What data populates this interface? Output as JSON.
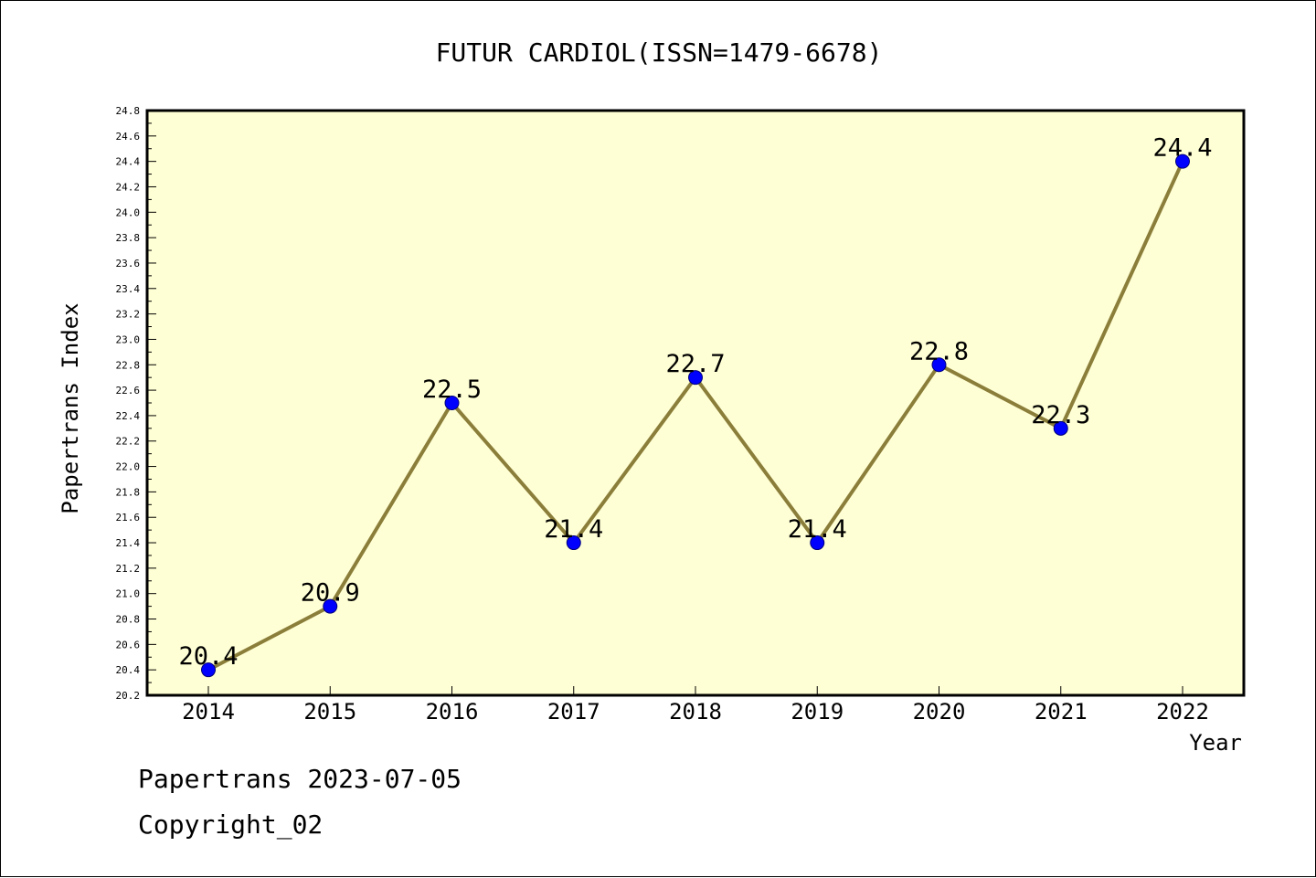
{
  "chart_data": {
    "type": "line",
    "title": "FUTUR CARDIOL(ISSN=1479-6678)",
    "xlabel": "Year",
    "ylabel": "Papertrans Index",
    "categories": [
      "2014",
      "2015",
      "2016",
      "2017",
      "2018",
      "2019",
      "2020",
      "2021",
      "2022"
    ],
    "series": [
      {
        "values": [
          20.4,
          20.9,
          22.5,
          21.4,
          22.7,
          21.4,
          22.8,
          22.3,
          24.4
        ]
      }
    ],
    "data_labels": [
      "20.4",
      "20.9",
      "22.5",
      "21.4",
      "22.7",
      "21.4",
      "22.8",
      "22.3",
      "24.4"
    ],
    "ylim": [
      20.2,
      24.8
    ],
    "yticks": [
      "20.2",
      "20.4",
      "20.6",
      "20.8",
      "21.0",
      "21.2",
      "21.4",
      "21.6",
      "21.8",
      "22.0",
      "22.2",
      "22.4",
      "22.6",
      "22.8",
      "23.0",
      "23.2",
      "23.4",
      "23.6",
      "23.8",
      "24.0",
      "24.2",
      "24.4",
      "24.6",
      "24.8"
    ],
    "grid": false,
    "colors": {
      "plot_background": "#ffffd5",
      "line": "#8b7e3a",
      "marker": "#0000ff"
    }
  },
  "footer": {
    "line1": "Papertrans 2023-07-05",
    "line2": "Copyright_02"
  }
}
